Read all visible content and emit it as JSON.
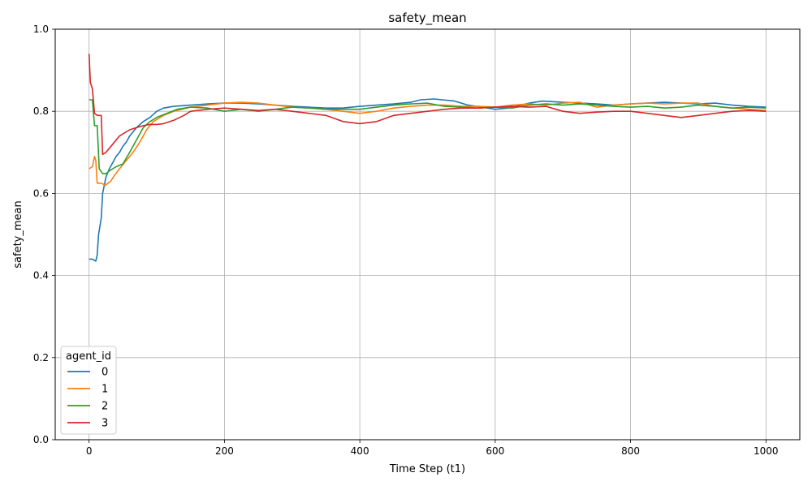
{
  "chart_data": {
    "type": "line",
    "title": "safety_mean",
    "xlabel": "Time Step (t1)",
    "ylabel": "safety_mean",
    "xlim": [
      -50,
      1050
    ],
    "ylim": [
      0.0,
      1.0
    ],
    "x_ticks": [
      0,
      200,
      400,
      600,
      800,
      1000
    ],
    "y_ticks": [
      0.0,
      0.2,
      0.4,
      0.6,
      0.8,
      1.0
    ],
    "x_tick_labels": [
      "0",
      "200",
      "400",
      "600",
      "800",
      "1000"
    ],
    "y_tick_labels": [
      "0.0",
      "0.2",
      "0.4",
      "0.6",
      "0.8",
      "1.0"
    ],
    "grid": true,
    "legend": {
      "title": "agent_id",
      "placement": "lower-left"
    },
    "series": [
      {
        "name": "0",
        "color": "#1f77b4",
        "points": [
          [
            0,
            0.44
          ],
          [
            5,
            0.44
          ],
          [
            10,
            0.435
          ],
          [
            12,
            0.45
          ],
          [
            14,
            0.5
          ],
          [
            18,
            0.54
          ],
          [
            20,
            0.6
          ],
          [
            25,
            0.64
          ],
          [
            30,
            0.66
          ],
          [
            35,
            0.675
          ],
          [
            40,
            0.69
          ],
          [
            45,
            0.7
          ],
          [
            50,
            0.715
          ],
          [
            55,
            0.725
          ],
          [
            60,
            0.74
          ],
          [
            65,
            0.75
          ],
          [
            70,
            0.76
          ],
          [
            80,
            0.775
          ],
          [
            90,
            0.785
          ],
          [
            100,
            0.8
          ],
          [
            110,
            0.808
          ],
          [
            125,
            0.812
          ],
          [
            150,
            0.815
          ],
          [
            175,
            0.818
          ],
          [
            200,
            0.82
          ],
          [
            225,
            0.82
          ],
          [
            250,
            0.818
          ],
          [
            275,
            0.815
          ],
          [
            300,
            0.812
          ],
          [
            325,
            0.81
          ],
          [
            350,
            0.808
          ],
          [
            375,
            0.808
          ],
          [
            400,
            0.812
          ],
          [
            425,
            0.815
          ],
          [
            450,
            0.818
          ],
          [
            475,
            0.822
          ],
          [
            490,
            0.828
          ],
          [
            510,
            0.83
          ],
          [
            540,
            0.825
          ],
          [
            560,
            0.815
          ],
          [
            580,
            0.81
          ],
          [
            600,
            0.805
          ],
          [
            620,
            0.808
          ],
          [
            650,
            0.82
          ],
          [
            670,
            0.825
          ],
          [
            700,
            0.822
          ],
          [
            725,
            0.82
          ],
          [
            750,
            0.818
          ],
          [
            775,
            0.815
          ],
          [
            800,
            0.818
          ],
          [
            825,
            0.82
          ],
          [
            850,
            0.822
          ],
          [
            875,
            0.82
          ],
          [
            900,
            0.818
          ],
          [
            925,
            0.82
          ],
          [
            950,
            0.815
          ],
          [
            975,
            0.812
          ],
          [
            1000,
            0.81
          ]
        ]
      },
      {
        "name": "1",
        "color": "#ff7f0e",
        "points": [
          [
            0,
            0.66
          ],
          [
            5,
            0.665
          ],
          [
            8,
            0.69
          ],
          [
            10,
            0.68
          ],
          [
            12,
            0.625
          ],
          [
            18,
            0.625
          ],
          [
            24,
            0.62
          ],
          [
            28,
            0.625
          ],
          [
            32,
            0.63
          ],
          [
            38,
            0.645
          ],
          [
            45,
            0.66
          ],
          [
            55,
            0.68
          ],
          [
            65,
            0.7
          ],
          [
            75,
            0.725
          ],
          [
            85,
            0.755
          ],
          [
            95,
            0.775
          ],
          [
            110,
            0.79
          ],
          [
            125,
            0.8
          ],
          [
            150,
            0.81
          ],
          [
            175,
            0.815
          ],
          [
            200,
            0.82
          ],
          [
            225,
            0.822
          ],
          [
            250,
            0.82
          ],
          [
            275,
            0.815
          ],
          [
            300,
            0.81
          ],
          [
            325,
            0.808
          ],
          [
            350,
            0.805
          ],
          [
            375,
            0.8
          ],
          [
            400,
            0.795
          ],
          [
            425,
            0.8
          ],
          [
            450,
            0.808
          ],
          [
            475,
            0.812
          ],
          [
            500,
            0.815
          ],
          [
            525,
            0.815
          ],
          [
            550,
            0.812
          ],
          [
            575,
            0.812
          ],
          [
            600,
            0.81
          ],
          [
            625,
            0.815
          ],
          [
            650,
            0.818
          ],
          [
            675,
            0.815
          ],
          [
            700,
            0.82
          ],
          [
            725,
            0.822
          ],
          [
            750,
            0.81
          ],
          [
            775,
            0.815
          ],
          [
            800,
            0.818
          ],
          [
            825,
            0.82
          ],
          [
            850,
            0.818
          ],
          [
            875,
            0.82
          ],
          [
            900,
            0.82
          ],
          [
            925,
            0.812
          ],
          [
            950,
            0.808
          ],
          [
            975,
            0.805
          ],
          [
            1000,
            0.802
          ]
        ]
      },
      {
        "name": "2",
        "color": "#2ca02c",
        "points": [
          [
            0,
            0.828
          ],
          [
            5,
            0.828
          ],
          [
            8,
            0.765
          ],
          [
            12,
            0.765
          ],
          [
            15,
            0.66
          ],
          [
            20,
            0.648
          ],
          [
            25,
            0.648
          ],
          [
            30,
            0.655
          ],
          [
            35,
            0.66
          ],
          [
            40,
            0.665
          ],
          [
            50,
            0.672
          ],
          [
            60,
            0.7
          ],
          [
            70,
            0.73
          ],
          [
            80,
            0.76
          ],
          [
            90,
            0.775
          ],
          [
            100,
            0.785
          ],
          [
            115,
            0.795
          ],
          [
            130,
            0.805
          ],
          [
            150,
            0.81
          ],
          [
            175,
            0.808
          ],
          [
            200,
            0.8
          ],
          [
            225,
            0.805
          ],
          [
            250,
            0.8
          ],
          [
            275,
            0.805
          ],
          [
            300,
            0.81
          ],
          [
            325,
            0.808
          ],
          [
            350,
            0.805
          ],
          [
            375,
            0.805
          ],
          [
            400,
            0.805
          ],
          [
            425,
            0.81
          ],
          [
            450,
            0.815
          ],
          [
            475,
            0.818
          ],
          [
            500,
            0.82
          ],
          [
            525,
            0.812
          ],
          [
            550,
            0.81
          ],
          [
            575,
            0.808
          ],
          [
            600,
            0.81
          ],
          [
            625,
            0.808
          ],
          [
            650,
            0.815
          ],
          [
            675,
            0.818
          ],
          [
            700,
            0.815
          ],
          [
            725,
            0.818
          ],
          [
            750,
            0.815
          ],
          [
            775,
            0.812
          ],
          [
            800,
            0.81
          ],
          [
            825,
            0.812
          ],
          [
            850,
            0.808
          ],
          [
            875,
            0.81
          ],
          [
            900,
            0.815
          ],
          [
            925,
            0.812
          ],
          [
            950,
            0.808
          ],
          [
            975,
            0.81
          ],
          [
            1000,
            0.808
          ]
        ]
      },
      {
        "name": "3",
        "color": "#d62728",
        "points": [
          [
            0,
            0.94
          ],
          [
            2,
            0.87
          ],
          [
            5,
            0.855
          ],
          [
            8,
            0.795
          ],
          [
            12,
            0.79
          ],
          [
            18,
            0.79
          ],
          [
            20,
            0.695
          ],
          [
            25,
            0.7
          ],
          [
            30,
            0.71
          ],
          [
            35,
            0.72
          ],
          [
            40,
            0.73
          ],
          [
            45,
            0.74
          ],
          [
            50,
            0.745
          ],
          [
            55,
            0.75
          ],
          [
            60,
            0.755
          ],
          [
            70,
            0.76
          ],
          [
            80,
            0.765
          ],
          [
            90,
            0.768
          ],
          [
            100,
            0.768
          ],
          [
            110,
            0.77
          ],
          [
            125,
            0.778
          ],
          [
            140,
            0.79
          ],
          [
            150,
            0.8
          ],
          [
            175,
            0.805
          ],
          [
            200,
            0.808
          ],
          [
            225,
            0.805
          ],
          [
            250,
            0.802
          ],
          [
            275,
            0.805
          ],
          [
            300,
            0.8
          ],
          [
            325,
            0.795
          ],
          [
            350,
            0.79
          ],
          [
            375,
            0.775
          ],
          [
            400,
            0.77
          ],
          [
            425,
            0.775
          ],
          [
            450,
            0.79
          ],
          [
            475,
            0.795
          ],
          [
            500,
            0.8
          ],
          [
            525,
            0.805
          ],
          [
            550,
            0.808
          ],
          [
            575,
            0.808
          ],
          [
            600,
            0.81
          ],
          [
            625,
            0.812
          ],
          [
            650,
            0.81
          ],
          [
            675,
            0.812
          ],
          [
            700,
            0.8
          ],
          [
            725,
            0.795
          ],
          [
            750,
            0.798
          ],
          [
            775,
            0.8
          ],
          [
            800,
            0.8
          ],
          [
            825,
            0.795
          ],
          [
            850,
            0.79
          ],
          [
            875,
            0.785
          ],
          [
            900,
            0.79
          ],
          [
            925,
            0.795
          ],
          [
            950,
            0.8
          ],
          [
            975,
            0.802
          ],
          [
            1000,
            0.8
          ]
        ]
      }
    ]
  }
}
